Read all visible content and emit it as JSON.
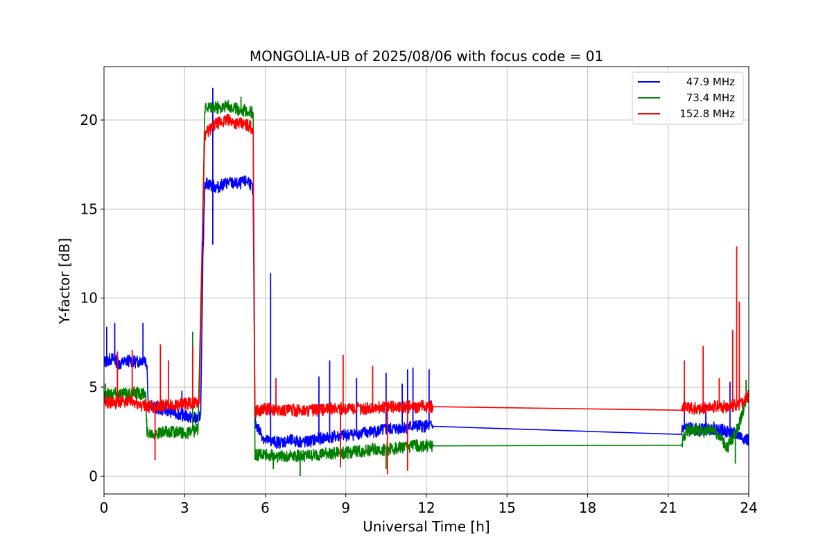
{
  "chart_data": {
    "type": "line",
    "title": "MONGOLIA-UB of 2025/08/06 with focus code = 01",
    "xlabel": "Universal Time [h]",
    "ylabel": "Y-factor [dB]",
    "xlim": [
      0,
      24
    ],
    "ylim": [
      -1,
      23
    ],
    "xticks": [
      0,
      3,
      6,
      9,
      12,
      15,
      18,
      21,
      24
    ],
    "xtick_labels": [
      "0",
      "3",
      "6",
      "9",
      "12",
      "15",
      "18",
      "21",
      "24"
    ],
    "yticks": [
      0,
      5,
      10,
      15,
      20
    ],
    "ytick_labels": [
      "0",
      "5",
      "10",
      "15",
      "20"
    ],
    "grid": true,
    "legend_position": "top-right",
    "series": [
      {
        "name": "47.9 MHz",
        "color": "#0000ff",
        "points": [
          [
            0.0,
            6.4
          ],
          [
            0.3,
            6.6
          ],
          [
            0.6,
            6.3
          ],
          [
            0.9,
            6.5
          ],
          [
            1.2,
            6.4
          ],
          [
            1.5,
            6.6
          ],
          [
            1.6,
            6.3
          ],
          [
            1.65,
            4.0
          ],
          [
            2.0,
            3.8
          ],
          [
            2.4,
            3.7
          ],
          [
            2.8,
            3.5
          ],
          [
            3.2,
            3.3
          ],
          [
            3.5,
            3.2
          ],
          [
            3.6,
            3.5
          ],
          [
            3.68,
            12.0
          ],
          [
            3.75,
            16.5
          ],
          [
            4.2,
            16.2
          ],
          [
            4.6,
            16.5
          ],
          [
            5.0,
            16.4
          ],
          [
            5.4,
            16.6
          ],
          [
            5.55,
            16.0
          ],
          [
            5.62,
            3.0
          ],
          [
            6.0,
            2.0
          ],
          [
            6.5,
            1.9
          ],
          [
            7.0,
            2.0
          ],
          [
            7.5,
            1.9
          ],
          [
            8.0,
            2.1
          ],
          [
            8.5,
            2.2
          ],
          [
            9.0,
            2.3
          ],
          [
            9.5,
            2.4
          ],
          [
            10.0,
            2.5
          ],
          [
            10.5,
            2.6
          ],
          [
            11.0,
            2.7
          ],
          [
            11.5,
            2.8
          ],
          [
            12.25,
            2.8
          ],
          [
            21.5,
            2.6
          ],
          [
            21.7,
            2.7
          ],
          [
            22.2,
            2.6
          ],
          [
            22.7,
            2.7
          ],
          [
            23.2,
            2.5
          ],
          [
            23.6,
            2.3
          ],
          [
            24.0,
            2.0
          ]
        ],
        "spikes": [
          [
            0.1,
            8.4
          ],
          [
            0.4,
            8.6
          ],
          [
            1.45,
            8.6
          ],
          [
            2.9,
            4.8
          ],
          [
            4.05,
            21.8
          ],
          [
            4.05,
            13.0
          ],
          [
            6.2,
            11.4
          ],
          [
            8.0,
            5.6
          ],
          [
            8.4,
            6.5
          ],
          [
            9.4,
            5.5
          ],
          [
            10.5,
            5.8
          ],
          [
            11.1,
            5.2
          ],
          [
            11.3,
            6.0
          ],
          [
            11.5,
            6.1
          ],
          [
            12.1,
            6.0
          ],
          [
            21.6,
            4.8
          ],
          [
            22.4,
            4.0
          ],
          [
            23.3,
            5.3
          ]
        ]
      },
      {
        "name": "73.4 MHz",
        "color": "#008000",
        "points": [
          [
            0.0,
            4.6
          ],
          [
            0.4,
            4.7
          ],
          [
            0.8,
            4.6
          ],
          [
            1.2,
            4.7
          ],
          [
            1.55,
            4.6
          ],
          [
            1.6,
            2.5
          ],
          [
            2.0,
            2.4
          ],
          [
            2.5,
            2.5
          ],
          [
            3.0,
            2.4
          ],
          [
            3.5,
            2.6
          ],
          [
            3.68,
            15.0
          ],
          [
            3.75,
            20.6
          ],
          [
            4.2,
            20.7
          ],
          [
            4.6,
            20.8
          ],
          [
            5.0,
            20.6
          ],
          [
            5.4,
            20.5
          ],
          [
            5.55,
            20.4
          ],
          [
            5.62,
            1.2
          ],
          [
            6.0,
            1.2
          ],
          [
            6.5,
            1.1
          ],
          [
            7.0,
            1.2
          ],
          [
            7.5,
            1.1
          ],
          [
            8.0,
            1.2
          ],
          [
            8.5,
            1.3
          ],
          [
            9.0,
            1.3
          ],
          [
            9.5,
            1.4
          ],
          [
            10.0,
            1.5
          ],
          [
            10.5,
            1.5
          ],
          [
            11.0,
            1.6
          ],
          [
            11.5,
            1.7
          ],
          [
            12.25,
            1.7
          ],
          [
            21.5,
            1.8
          ],
          [
            21.7,
            2.6
          ],
          [
            22.2,
            2.5
          ],
          [
            22.7,
            2.6
          ],
          [
            23.2,
            1.6
          ],
          [
            23.6,
            2.7
          ],
          [
            24.0,
            4.8
          ]
        ],
        "spikes": [
          [
            0.05,
            5.2
          ],
          [
            3.3,
            8.1
          ],
          [
            4.0,
            21.0
          ],
          [
            5.1,
            21.3
          ],
          [
            6.3,
            0.4
          ],
          [
            7.3,
            0.0
          ],
          [
            10.5,
            0.4
          ],
          [
            23.5,
            0.7
          ],
          [
            23.9,
            5.4
          ]
        ]
      },
      {
        "name": "152.8 MHz",
        "color": "#ff0000",
        "points": [
          [
            0.0,
            4.2
          ],
          [
            0.4,
            4.1
          ],
          [
            0.8,
            4.2
          ],
          [
            1.2,
            4.1
          ],
          [
            1.6,
            3.9
          ],
          [
            2.0,
            3.9
          ],
          [
            2.4,
            4.0
          ],
          [
            2.8,
            4.0
          ],
          [
            3.2,
            4.1
          ],
          [
            3.55,
            4.2
          ],
          [
            3.68,
            15.0
          ],
          [
            3.75,
            19.2
          ],
          [
            4.2,
            19.8
          ],
          [
            4.6,
            20.0
          ],
          [
            5.0,
            19.8
          ],
          [
            5.4,
            19.7
          ],
          [
            5.55,
            19.5
          ],
          [
            5.62,
            3.6
          ],
          [
            6.0,
            3.8
          ],
          [
            6.5,
            3.7
          ],
          [
            7.0,
            3.7
          ],
          [
            7.5,
            3.7
          ],
          [
            8.0,
            3.7
          ],
          [
            8.5,
            3.8
          ],
          [
            9.0,
            3.8
          ],
          [
            9.5,
            3.8
          ],
          [
            10.0,
            3.8
          ],
          [
            10.5,
            3.9
          ],
          [
            11.0,
            3.9
          ],
          [
            11.5,
            3.9
          ],
          [
            12.25,
            3.9
          ],
          [
            21.5,
            3.95
          ],
          [
            21.7,
            3.8
          ],
          [
            22.2,
            3.8
          ],
          [
            22.7,
            3.9
          ],
          [
            23.2,
            3.9
          ],
          [
            23.6,
            4.0
          ],
          [
            24.0,
            4.5
          ]
        ],
        "spikes": [
          [
            0.5,
            7.0
          ],
          [
            1.05,
            7.1
          ],
          [
            1.9,
            0.9
          ],
          [
            2.1,
            7.4
          ],
          [
            2.4,
            6.5
          ],
          [
            3.3,
            7.3
          ],
          [
            6.4,
            5.5
          ],
          [
            8.8,
            0.5
          ],
          [
            8.9,
            6.8
          ],
          [
            10.0,
            6.2
          ],
          [
            10.55,
            0.1
          ],
          [
            11.3,
            0.3
          ],
          [
            21.6,
            6.5
          ],
          [
            22.3,
            7.3
          ],
          [
            22.9,
            5.5
          ],
          [
            23.4,
            8.2
          ],
          [
            23.55,
            12.9
          ],
          [
            23.65,
            9.8
          ]
        ]
      }
    ]
  }
}
